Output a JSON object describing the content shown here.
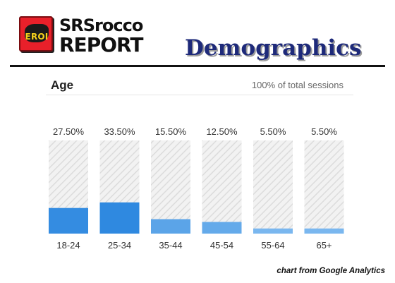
{
  "logo": {
    "badge": "EROI",
    "brand_line1": "SRSrocco",
    "brand_line2": "REPORT"
  },
  "page_title": "Demographics",
  "card": {
    "title": "Age",
    "subtitle": "100% of total sessions"
  },
  "footer": "chart from Google Analytics",
  "colors": {
    "bar_strong": "#2f89e0",
    "bar_light": "#8cc2f2",
    "track": "#ececec",
    "title_blue": "#1e2a7a"
  },
  "chart_data": {
    "type": "bar",
    "categories": [
      "18-24",
      "25-34",
      "35-44",
      "45-54",
      "55-64",
      "65+"
    ],
    "values": [
      27.5,
      33.5,
      15.5,
      12.5,
      5.5,
      5.5
    ],
    "value_labels": [
      "27.50%",
      "33.50%",
      "15.50%",
      "12.50%",
      "5.50%",
      "5.50%"
    ],
    "ylim": [
      0,
      100
    ],
    "title": "Age",
    "xlabel": "",
    "ylabel": "",
    "grid": false
  }
}
